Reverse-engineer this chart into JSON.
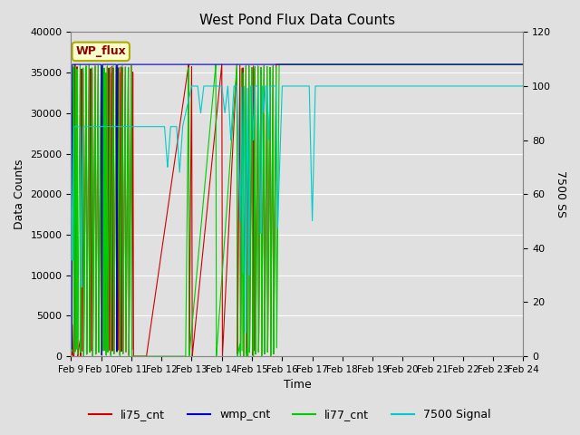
{
  "title": "West Pond Flux Data Counts",
  "xlabel": "Time",
  "ylabel_left": "Data Counts",
  "ylabel_right": "7500 SS",
  "ylim_left": [
    0,
    40000
  ],
  "ylim_right": [
    0,
    120
  ],
  "facecolor": "#e0e0e0",
  "plot_bg_color": "#e0e0e0",
  "wp_flux_label": "WP_flux",
  "wp_flux_bg": "#ffffcc",
  "wp_flux_border": "#aaaa00",
  "wp_flux_text_color": "#8b0000",
  "legend_entries": [
    "li75_cnt",
    "wmp_cnt",
    "li77_cnt",
    "7500 Signal"
  ],
  "legend_colors": [
    "#cc0000",
    "#0000cc",
    "#00cc00",
    "#00cccc"
  ],
  "line_colors": {
    "li75": "#cc0000",
    "wmp": "#0000bb",
    "li77": "#00cc00",
    "ss7500": "#00cccc"
  },
  "xtick_labels": [
    "Feb 9",
    "Feb 10",
    "Feb 11",
    "Feb 12",
    "Feb 13",
    "Feb 14",
    "Feb 15",
    "Feb 16",
    "Feb 17",
    "Feb 18",
    "Feb 19",
    "Feb 20",
    "Feb 21",
    "Feb 22",
    "Feb 23",
    "Feb 24"
  ],
  "yticks_left": [
    0,
    5000,
    10000,
    15000,
    20000,
    25000,
    30000,
    35000,
    40000
  ],
  "yticks_right": [
    0,
    20,
    40,
    60,
    80,
    100,
    120
  ],
  "grid_color": "#ffffff",
  "figsize": [
    6.4,
    4.8
  ],
  "dpi": 100
}
